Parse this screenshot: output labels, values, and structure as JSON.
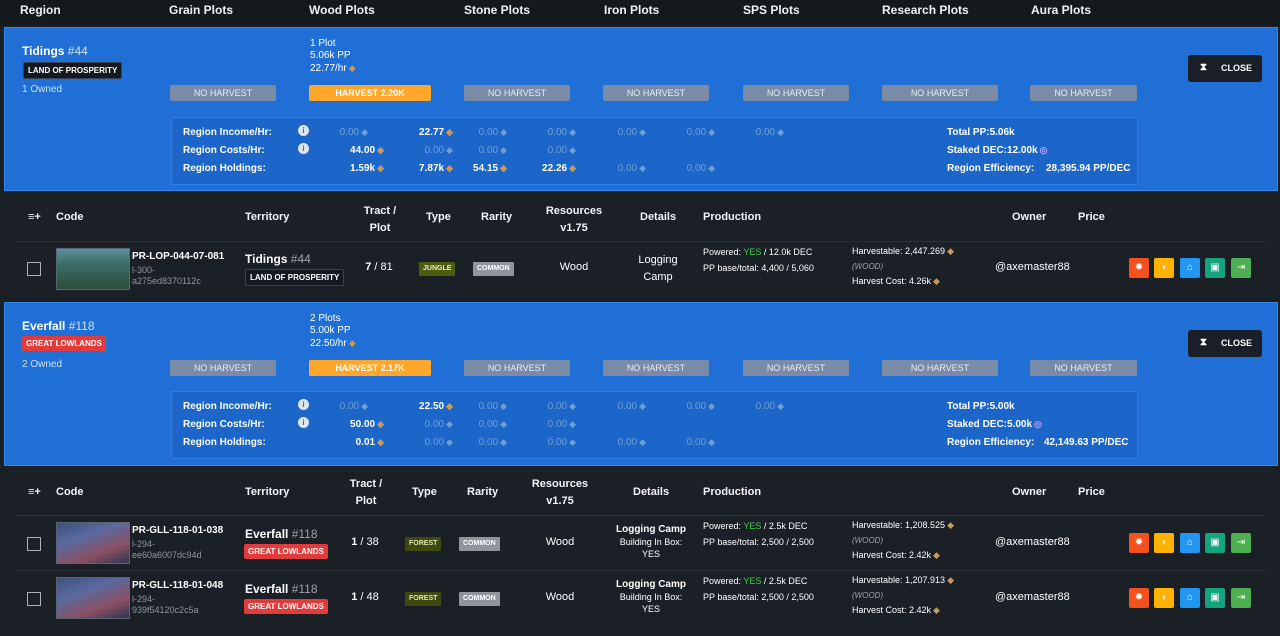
{
  "header": {
    "columns": [
      "Region",
      "Grain Plots",
      "Wood Plots",
      "Stone Plots",
      "Iron Plots",
      "SPS Plots",
      "Research Plots",
      "Aura Plots"
    ]
  },
  "regions": [
    {
      "name": "Tidings",
      "number": "#44",
      "badge": "LAND OF PROSPERITY",
      "owned": "1 Owned",
      "plots": "1 Plot",
      "pp": "5.06k PP",
      "per_hr": "22.77/hr",
      "harvest": [
        "NO HARVEST",
        "HARVEST 2.20K",
        "NO HARVEST",
        "NO HARVEST",
        "NO HARVEST",
        "NO HARVEST",
        "NO HARVEST"
      ],
      "close_label": "CLOSE",
      "stats": {
        "labels": [
          "Region Income/Hr:",
          "Region Costs/Hr:",
          "Region Holdings:"
        ],
        "income": [
          "0.00",
          "22.77",
          "0.00",
          "0.00",
          "0.00",
          "0.00",
          "0.00"
        ],
        "costs": [
          "44.00",
          "0.00",
          "0.00",
          "0.00"
        ],
        "holdings": [
          "1.59k",
          "7.87k",
          "54.15",
          "22.26",
          "0.00",
          "0.00"
        ],
        "total_pp": "Total PP:5.06k",
        "staked_dec": "Staked DEC:12.00k",
        "efficiency_label": "Region Efficiency:",
        "efficiency": "28,395.94 PP/DEC"
      }
    },
    {
      "name": "Everfall",
      "number": "#118",
      "badge": "GREAT LOWLANDS",
      "owned": "2 Owned",
      "plots": "2 Plots",
      "pp": "5.00k PP",
      "per_hr": "22.50/hr",
      "harvest": [
        "NO HARVEST",
        "HARVEST 2.17K",
        "NO HARVEST",
        "NO HARVEST",
        "NO HARVEST",
        "NO HARVEST",
        "NO HARVEST"
      ],
      "close_label": "CLOSE",
      "stats": {
        "labels": [
          "Region Income/Hr:",
          "Region Costs/Hr:",
          "Region Holdings:"
        ],
        "income": [
          "0.00",
          "22.50",
          "0.00",
          "0.00",
          "0.00",
          "0.00",
          "0.00"
        ],
        "costs": [
          "50.00",
          "0.00",
          "0.00",
          "0.00"
        ],
        "holdings": [
          "0.01",
          "0.00",
          "0.00",
          "0.00",
          "0.00",
          "0.00"
        ],
        "total_pp": "Total PP:5.00k",
        "staked_dec": "Staked DEC:5.00k",
        "efficiency_label": "Region Efficiency:",
        "efficiency": "42,149.63 PP/DEC"
      }
    }
  ],
  "table_headers": {
    "code": "Code",
    "territory": "Territory",
    "tract1": "Tract /",
    "tract2": "Plot",
    "type": "Type",
    "rarity": "Rarity",
    "resources1": "Resources",
    "resources2": "v1.75",
    "details": "Details",
    "production": "Production",
    "owner": "Owner",
    "price": "Price",
    "menu_icon": "≡+"
  },
  "plots": [
    {
      "code": "PR-LOP-044-07-081",
      "sub1": "l-300-",
      "sub2": "a275ed8370112c",
      "territory": "Tidings",
      "terr_num": "#44",
      "terr_badge": "LAND OF PROSPERITY",
      "tract": "7",
      "plot": "81",
      "type": "JUNGLE",
      "rarity": "COMMON",
      "resource": "Wood",
      "details1": "Logging",
      "details2": "Camp",
      "powered_label": "Powered: ",
      "powered": "YES",
      "powered_dec": " / 12.0k DEC",
      "pp_base": "PP base/total: 4,400 / 5,060",
      "harvestable": "Harvestable: 2,447.269",
      "wood": "(WOOD)",
      "harvest_cost": "Harvest Cost: 4.26k",
      "owner": "@axemaster88"
    },
    {
      "code": "PR-GLL-118-01-038",
      "sub1": "l-294-",
      "sub2": "ee60a6007dc94d",
      "territory": "Everfall",
      "terr_num": "#118",
      "terr_badge": "GREAT LOWLANDS",
      "tract": "1",
      "plot": "38",
      "type": "FOREST",
      "rarity": "COMMON",
      "resource": "Wood",
      "details1": "Logging Camp",
      "details2": "Building In Box:",
      "details3": "YES",
      "powered_label": "Powered: ",
      "powered": "YES",
      "powered_dec": " / 2.5k DEC",
      "pp_base": "PP base/total: 2,500 / 2,500",
      "harvestable": "Harvestable: 1,208.525",
      "wood": "(WOOD)",
      "harvest_cost": "Harvest Cost: 2.42k",
      "owner": "@axemaster88"
    },
    {
      "code": "PR-GLL-118-01-048",
      "sub1": "l-294-",
      "sub2": "939f54120c2c5a",
      "territory": "Everfall",
      "terr_num": "#118",
      "terr_badge": "GREAT LOWLANDS",
      "tract": "1",
      "plot": "48",
      "type": "FOREST",
      "rarity": "COMMON",
      "resource": "Wood",
      "details1": "Logging Camp",
      "details2": "Building In Box:",
      "details3": "YES",
      "powered_label": "Powered: ",
      "powered": "YES",
      "powered_dec": " / 2.5k DEC",
      "pp_base": "PP base/total: 2,500 / 2,500",
      "harvestable": "Harvestable: 1,207.913",
      "wood": "(WOOD)",
      "harvest_cost": "Harvest Cost: 2.42k",
      "owner": "@axemaster88"
    }
  ]
}
